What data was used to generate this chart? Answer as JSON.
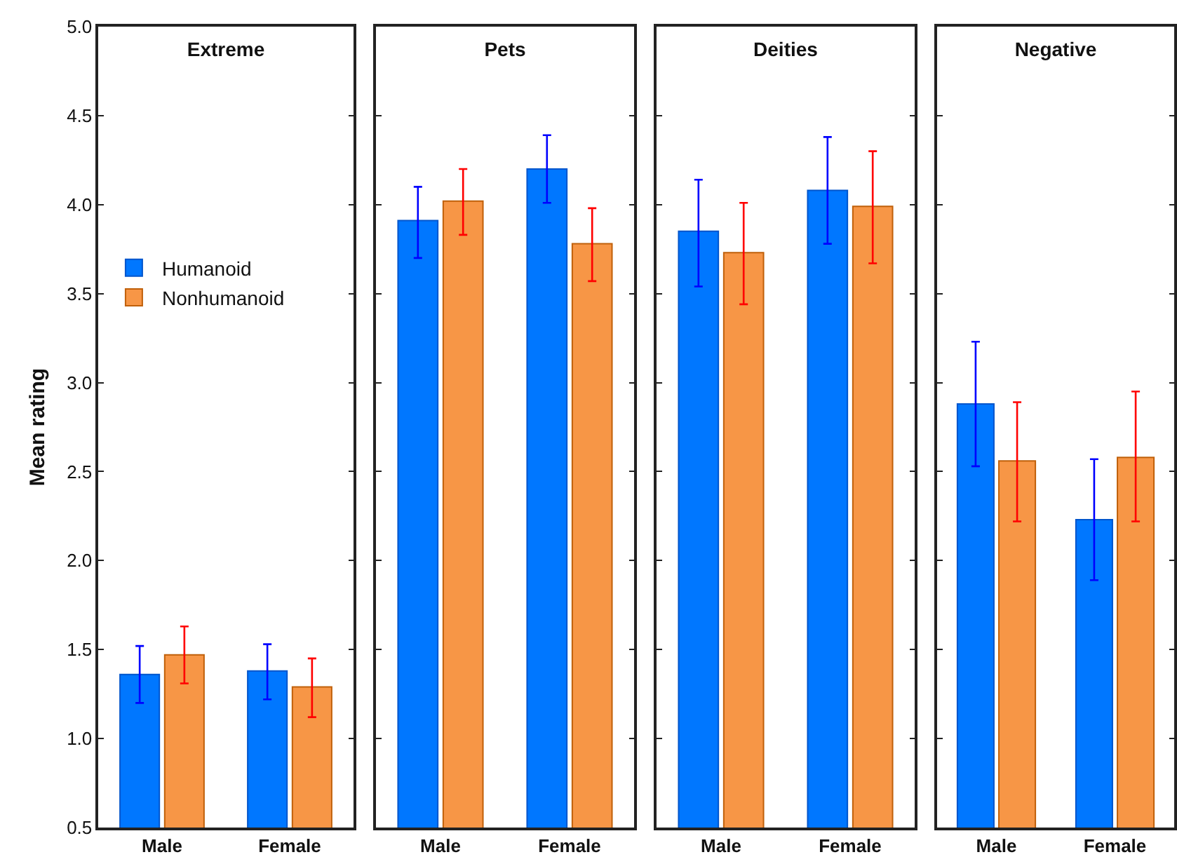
{
  "chart_data": [
    {
      "type": "bar",
      "title": "Extreme",
      "ylabel": "Mean rating",
      "categories": [
        "Male",
        "Female"
      ],
      "ylim": [
        0.5,
        5.0
      ],
      "yticks": [
        {
          "value": 0.5,
          "label": "0.5"
        },
        {
          "value": 1.0,
          "label": "1.0"
        },
        1.5,
        {
          "value": 2.0,
          "label": "2.0"
        },
        2.5,
        {
          "value": 3.0,
          "label": "3.0"
        },
        3.5,
        {
          "value": 4.0,
          "label": "4.0"
        },
        4.5,
        {
          "value": 5.0,
          "label": "5.0"
        }
      ],
      "grid": false,
      "legend": "left",
      "series": [
        {
          "name": "Humanoid",
          "color": "#0077ff",
          "values": [
            1.36,
            1.38
          ],
          "errors": [
            [
              1.2,
              1.52
            ],
            [
              1.22,
              1.53
            ]
          ]
        },
        {
          "name": "Nonhumanoid",
          "color": "#f79646",
          "values": [
            1.47,
            1.29
          ],
          "errors": [
            [
              1.31,
              1.63
            ],
            [
              1.12,
              1.45
            ]
          ]
        }
      ]
    },
    {
      "type": "bar",
      "title": "Pets",
      "categories": [
        "Male",
        "Female"
      ],
      "ylim": [
        0.5,
        5.0
      ],
      "yticks": [
        0.5,
        1,
        1.5,
        2,
        2.5,
        3,
        3.5,
        4,
        4.5,
        5
      ],
      "grid": false,
      "tick_labels": "x",
      "series": [
        {
          "color": "#0077ff",
          "values": [
            3.91,
            4.2
          ],
          "errors": [
            [
              3.7,
              4.1
            ],
            [
              4.01,
              4.39
            ]
          ]
        },
        {
          "color": "#f79646",
          "values": [
            4.02,
            3.78
          ],
          "errors": [
            [
              3.83,
              4.2
            ],
            [
              3.57,
              3.98
            ]
          ]
        }
      ]
    },
    {
      "type": "bar",
      "title": "Deities",
      "categories": [
        "Male",
        "Female"
      ],
      "ylim": [
        0.5,
        5.0
      ],
      "yticks": [
        0.5,
        1,
        1.5,
        2,
        2.5,
        3,
        3.5,
        4,
        4.5,
        5
      ],
      "grid": false,
      "tick_labels": "x",
      "series": [
        {
          "color": "#0077ff",
          "values": [
            3.85,
            4.08
          ],
          "errors": [
            [
              3.54,
              4.14
            ],
            [
              3.78,
              4.38
            ]
          ]
        },
        {
          "color": "#f79646",
          "values": [
            3.73,
            3.99
          ],
          "errors": [
            [
              3.44,
              4.01
            ],
            [
              3.67,
              4.3
            ]
          ]
        }
      ]
    },
    {
      "type": "bar",
      "title": "Negative",
      "categories": [
        "Male",
        "Female"
      ],
      "ylim": [
        0.5,
        5.0
      ],
      "yticks": [
        0.5,
        1,
        1.5,
        2,
        2.5,
        3,
        3.5,
        4,
        4.5,
        5
      ],
      "grid": false,
      "tick_labels": "x",
      "series": [
        {
          "color": "#0077ff",
          "values": [
            2.88,
            2.23
          ],
          "errors": [
            [
              2.53,
              3.23
            ],
            [
              1.89,
              2.57
            ]
          ]
        },
        {
          "color": "#f79646",
          "values": [
            2.56,
            2.58
          ],
          "errors": [
            [
              2.22,
              2.89
            ],
            [
              2.22,
              2.95
            ]
          ]
        }
      ]
    }
  ]
}
